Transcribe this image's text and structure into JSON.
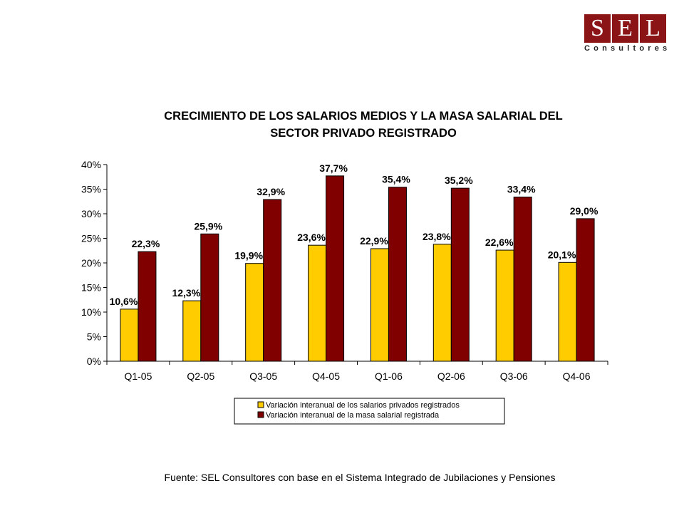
{
  "logo": {
    "letters": [
      "S",
      "E",
      "L"
    ],
    "subtitle": "Consultores",
    "color": "#8b1416"
  },
  "chart_data": {
    "type": "bar",
    "title_line1": "CRECIMIENTO DE LOS SALARIOS MEDIOS Y LA MASA SALARIAL DEL",
    "title_line2": "SECTOR PRIVADO REGISTRADO",
    "categories": [
      "Q1-05",
      "Q2-05",
      "Q3-05",
      "Q4-05",
      "Q1-06",
      "Q2-06",
      "Q3-06",
      "Q4-06"
    ],
    "series": [
      {
        "name": "Variación interanual de los salarios privados registrados",
        "color": "#ffcc00",
        "values": [
          10.6,
          12.3,
          19.9,
          23.6,
          22.9,
          23.8,
          22.6,
          20.1
        ],
        "labels": [
          "10,6%",
          "12,3%",
          "19,9%",
          "23,6%",
          "22,9%",
          "23,8%",
          "22,6%",
          "20,1%"
        ]
      },
      {
        "name": "Variación interanual de la masa salarial registrada",
        "color": "#800000",
        "values": [
          22.3,
          25.9,
          32.9,
          37.7,
          35.4,
          35.2,
          33.4,
          29.0
        ],
        "labels": [
          "22,3%",
          "25,9%",
          "32,9%",
          "37,7%",
          "35,4%",
          "35,2%",
          "33,4%",
          "29,0%"
        ]
      }
    ],
    "ylim": [
      0,
      40
    ],
    "yticks": [
      0,
      5,
      10,
      15,
      20,
      25,
      30,
      35,
      40
    ],
    "ytick_labels": [
      "0%",
      "5%",
      "10%",
      "15%",
      "20%",
      "25%",
      "30%",
      "35%",
      "40%"
    ],
    "grid": false,
    "legend_position": "bottom-center"
  },
  "source": "Fuente: SEL Consultores con base en el Sistema Integrado de Jubilaciones y Pensiones"
}
